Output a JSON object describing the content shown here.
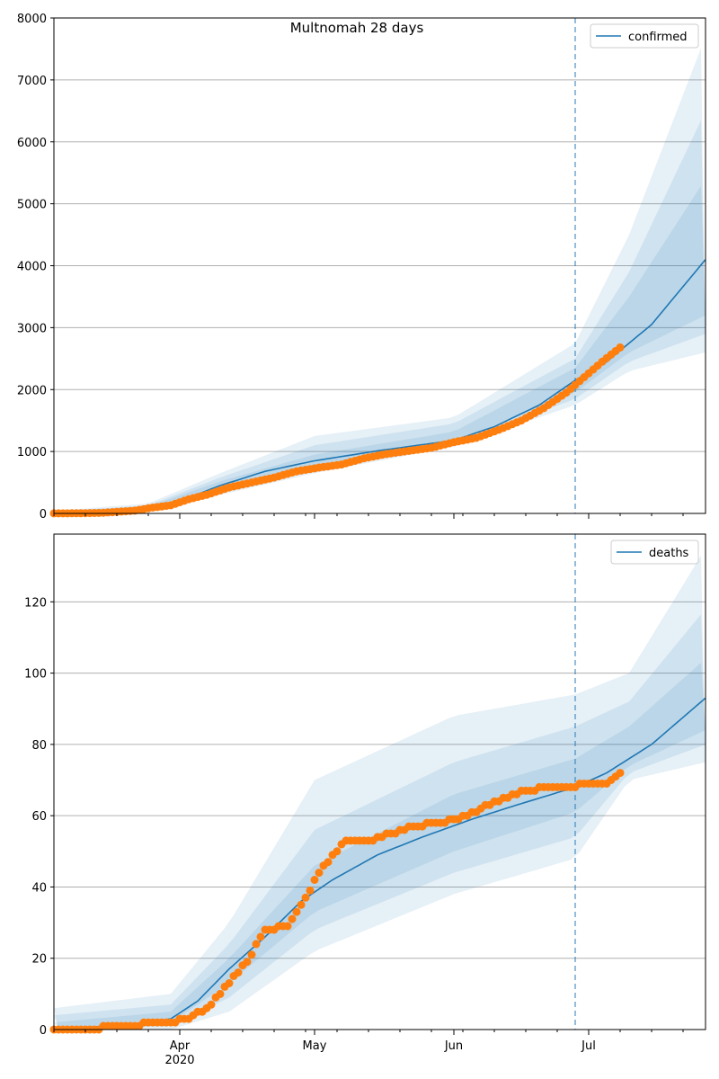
{
  "title": "Multnomah 28 days",
  "colors": {
    "model_line": "#1f77b4",
    "observed_points": "#ff7f0e",
    "band": "#1f77b4",
    "forecast_line": "#1f77b4",
    "grid": "#b0b0b0"
  },
  "x_axis": {
    "ticks": [
      {
        "date": "2020-04-01",
        "label": "Apr",
        "sublabel": "2020"
      },
      {
        "date": "2020-05-01",
        "label": "May",
        "sublabel": ""
      },
      {
        "date": "2020-06-01",
        "label": "Jun",
        "sublabel": ""
      },
      {
        "date": "2020-07-01",
        "label": "Jul",
        "sublabel": ""
      }
    ],
    "range": [
      "2020-03-04",
      "2020-07-27"
    ],
    "forecast_start": "2020-06-28"
  },
  "chart_data": [
    {
      "type": "line",
      "legend": "confirmed",
      "legend_position": "top-right",
      "ylim": [
        0,
        8000
      ],
      "yticks": [
        0,
        1000,
        2000,
        3000,
        4000,
        5000,
        6000,
        7000,
        8000
      ],
      "grid": "horizontal",
      "model": {
        "dates": [
          "2020-03-04",
          "2020-03-15",
          "2020-03-25",
          "2020-04-01",
          "2020-04-10",
          "2020-04-20",
          "2020-05-01",
          "2020-05-15",
          "2020-06-01",
          "2020-06-10",
          "2020-06-20",
          "2020-06-28",
          "2020-07-05",
          "2020-07-15",
          "2020-07-27"
        ],
        "values": [
          5,
          15,
          90,
          200,
          450,
          680,
          850,
          1010,
          1180,
          1400,
          1750,
          2150,
          2450,
          3050,
          4100
        ]
      },
      "bands": [
        {
          "dates": [
            "2020-03-04",
            "2020-03-25",
            "2020-04-10",
            "2020-05-01",
            "2020-06-01",
            "2020-06-28",
            "2020-07-10",
            "2020-07-27"
          ],
          "low": [
            0,
            70,
            300,
            650,
            1080,
            1750,
            2300,
            2600
          ],
          "high": [
            40,
            160,
            650,
            1250,
            1550,
            2750,
            4500,
            7700
          ]
        },
        {
          "dates": [
            "2020-03-04",
            "2020-03-25",
            "2020-04-10",
            "2020-05-01",
            "2020-06-01",
            "2020-06-28",
            "2020-07-10",
            "2020-07-27"
          ],
          "low": [
            0,
            75,
            350,
            720,
            1120,
            1850,
            2450,
            2900
          ],
          "high": [
            30,
            130,
            580,
            1100,
            1450,
            2500,
            3900,
            6500
          ]
        },
        {
          "dates": [
            "2020-03-04",
            "2020-03-25",
            "2020-04-10",
            "2020-05-01",
            "2020-06-01",
            "2020-06-28",
            "2020-07-10",
            "2020-07-27"
          ],
          "low": [
            2,
            80,
            400,
            780,
            1150,
            1950,
            2600,
            3200
          ],
          "high": [
            20,
            110,
            520,
            950,
            1320,
            2350,
            3500,
            5400
          ]
        }
      ],
      "observed": {
        "dates": [
          "2020-03-04",
          "2020-03-10",
          "2020-03-14",
          "2020-03-18",
          "2020-03-22",
          "2020-03-26",
          "2020-03-30",
          "2020-04-03",
          "2020-04-07",
          "2020-04-12",
          "2020-04-17",
          "2020-04-22",
          "2020-04-27",
          "2020-05-02",
          "2020-05-07",
          "2020-05-12",
          "2020-05-17",
          "2020-05-22",
          "2020-05-27",
          "2020-06-01",
          "2020-06-06",
          "2020-06-11",
          "2020-06-16",
          "2020-06-21",
          "2020-06-26",
          "2020-06-30",
          "2020-07-04",
          "2020-07-08"
        ],
        "values": [
          1,
          3,
          8,
          25,
          45,
          95,
          130,
          230,
          300,
          420,
          500,
          580,
          680,
          740,
          790,
          890,
          960,
          1010,
          1060,
          1150,
          1220,
          1350,
          1500,
          1700,
          1950,
          2200,
          2450,
          2680
        ]
      }
    },
    {
      "type": "line",
      "legend": "deaths",
      "legend_position": "top-right",
      "ylim": [
        0,
        139
      ],
      "yticks": [
        0,
        20,
        40,
        60,
        80,
        100,
        120
      ],
      "grid": "horizontal",
      "model": {
        "dates": [
          "2020-03-04",
          "2020-03-20",
          "2020-03-30",
          "2020-04-05",
          "2020-04-12",
          "2020-04-20",
          "2020-04-28",
          "2020-05-05",
          "2020-05-15",
          "2020-05-25",
          "2020-06-05",
          "2020-06-15",
          "2020-06-28",
          "2020-07-05",
          "2020-07-15",
          "2020-07-27"
        ],
        "values": [
          0.5,
          1,
          3,
          8,
          17,
          26,
          36,
          42,
          49,
          54,
          59,
          63,
          68,
          72,
          80,
          93
        ]
      },
      "bands": [
        {
          "dates": [
            "2020-03-04",
            "2020-03-30",
            "2020-04-12",
            "2020-05-01",
            "2020-06-01",
            "2020-06-28",
            "2020-07-10",
            "2020-07-27"
          ],
          "low": [
            0,
            0,
            5,
            22,
            38,
            48,
            70,
            75
          ],
          "high": [
            6,
            10,
            30,
            70,
            88,
            94,
            100,
            135
          ]
        },
        {
          "dates": [
            "2020-03-04",
            "2020-03-30",
            "2020-04-12",
            "2020-05-01",
            "2020-06-01",
            "2020-06-28",
            "2020-07-10",
            "2020-07-27"
          ],
          "low": [
            0,
            1,
            9,
            28,
            44,
            54,
            72,
            80
          ],
          "high": [
            4,
            7,
            24,
            56,
            75,
            85,
            92,
            118
          ]
        },
        {
          "dates": [
            "2020-03-04",
            "2020-03-30",
            "2020-04-12",
            "2020-05-01",
            "2020-06-01",
            "2020-06-28",
            "2020-07-10",
            "2020-07-27"
          ],
          "low": [
            0,
            2,
            13,
            33,
            50,
            61,
            74,
            84
          ],
          "high": [
            2,
            5,
            20,
            46,
            66,
            76,
            85,
            104
          ]
        }
      ],
      "observed": {
        "dates": [
          "2020-03-04",
          "2020-03-12",
          "2020-03-18",
          "2020-03-22",
          "2020-03-26",
          "2020-03-30",
          "2020-04-03",
          "2020-04-08",
          "2020-04-12",
          "2020-04-16",
          "2020-04-20",
          "2020-04-25",
          "2020-04-29",
          "2020-05-03",
          "2020-05-08",
          "2020-05-13",
          "2020-05-18",
          "2020-05-23",
          "2020-05-28",
          "2020-06-02",
          "2020-06-07",
          "2020-06-12",
          "2020-06-17",
          "2020-06-22",
          "2020-06-27",
          "2020-07-01",
          "2020-07-05",
          "2020-07-08"
        ],
        "values": [
          0,
          0,
          1,
          1,
          2,
          2,
          3,
          7,
          13,
          19,
          28,
          29,
          37,
          46,
          53,
          53,
          55,
          57,
          58,
          59,
          62,
          65,
          67,
          68,
          68,
          69,
          69,
          72
        ]
      }
    }
  ]
}
